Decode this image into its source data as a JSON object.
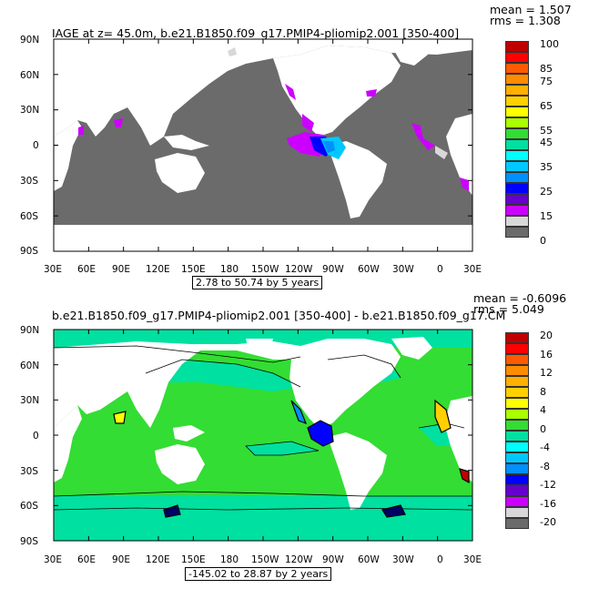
{
  "panel1": {
    "title": "IAGE at z=   45.0m, b.e21.B1850.f09_g17.PMIP4-pliomip2.001  [350-400]",
    "mean_label": "mean = 1.507",
    "rms_label": "rms = 1.308",
    "range_label": "2.78 to 50.74 by 5 years",
    "lat_labels": [
      "90N",
      "60N",
      "30N",
      "0",
      "30S",
      "60S",
      "90S"
    ],
    "lon_labels": [
      "30E",
      "60E",
      "90E",
      "120E",
      "150E",
      "180",
      "150W",
      "120W",
      "90W",
      "60W",
      "30W",
      "0",
      "30E"
    ],
    "colorbar": {
      "labels": [
        "100",
        "",
        "85",
        "75",
        "",
        "65",
        "",
        "55",
        "45",
        "",
        "35",
        "",
        "25",
        "",
        "15",
        "",
        "0"
      ],
      "colors": [
        "#c00000",
        "#ff0000",
        "#ff5a00",
        "#ff8c00",
        "#ffb000",
        "#ffd000",
        "#ffff00",
        "#aaff00",
        "#33dd33",
        "#00e0a0",
        "#00ffff",
        "#00c8ff",
        "#0090ff",
        "#0000ff",
        "#6600cc",
        "#cc00ff",
        "#d8d8d8",
        "#6b6b6b"
      ]
    }
  },
  "panel2": {
    "title": "b.e21.B1850.f09_g17.PMIP4-pliomip2.001  [350-400]  -  b.e21.B1850.f09_g17.CM",
    "mean_label": "mean = -0.6096",
    "rms_label": "rms = 5.049",
    "range_label": "-145.02 to 28.87 by 2 years",
    "lat_labels": [
      "90N",
      "60N",
      "30N",
      "0",
      "30S",
      "60S",
      "90S"
    ],
    "lon_labels": [
      "30E",
      "60E",
      "90E",
      "120E",
      "150E",
      "180",
      "150W",
      "120W",
      "90W",
      "60W",
      "30W",
      "0",
      "30E"
    ],
    "colorbar": {
      "labels": [
        "20",
        "16",
        "12",
        "8",
        "4",
        "0",
        "-4",
        "-8",
        "-12",
        "-16",
        "-20"
      ],
      "colors": [
        "#c00000",
        "#ff0000",
        "#ff5a00",
        "#ff8c00",
        "#ffb000",
        "#ffd000",
        "#ffff00",
        "#aaff00",
        "#33dd33",
        "#00e0a0",
        "#00ffff",
        "#00c8ff",
        "#0090ff",
        "#0000ff",
        "#6600cc",
        "#cc00ff",
        "#d8d8d8",
        "#6b6b6b"
      ]
    }
  }
}
